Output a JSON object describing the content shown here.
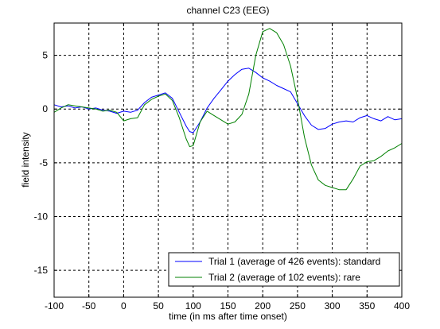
{
  "chart_data": {
    "type": "line",
    "title": "channel C23 (EEG)",
    "xlabel": "time (in ms after time onset)",
    "ylabel": "field intensity",
    "xlim": [
      -100,
      400
    ],
    "ylim": [
      -17.5,
      8
    ],
    "xticks": [
      "-100",
      "-50",
      "0",
      "50",
      "100",
      "150",
      "200",
      "250",
      "300",
      "350",
      "400"
    ],
    "yticks": [
      "5",
      "0",
      "-5",
      "-10",
      "-15"
    ],
    "grid": true,
    "legend_position": "bottom-right",
    "colors": {
      "standard": "#0000ff",
      "rare": "#008000"
    },
    "series": [
      {
        "name": "Trial 1 (average of 426 events): standard",
        "color": "#0000ff",
        "x": [
          -100,
          -90,
          -80,
          -70,
          -60,
          -50,
          -40,
          -30,
          -20,
          -10,
          0,
          10,
          20,
          30,
          40,
          50,
          60,
          70,
          80,
          90,
          95,
          100,
          110,
          120,
          130,
          140,
          150,
          160,
          170,
          180,
          190,
          200,
          210,
          220,
          230,
          240,
          250,
          260,
          270,
          280,
          290,
          300,
          310,
          320,
          330,
          340,
          350,
          360,
          370,
          380,
          390,
          400
        ],
        "y": [
          0.4,
          0.2,
          0.3,
          0.1,
          0.2,
          0.0,
          0.1,
          -0.1,
          -0.2,
          -0.4,
          -0.2,
          -0.3,
          -0.1,
          0.6,
          1.1,
          1.3,
          1.5,
          1.0,
          -0.3,
          -1.6,
          -2.1,
          -2.2,
          -1.2,
          0.1,
          1.0,
          1.8,
          2.6,
          3.2,
          3.7,
          3.8,
          3.4,
          2.9,
          2.6,
          2.2,
          1.9,
          1.6,
          0.5,
          -0.6,
          -1.5,
          -1.9,
          -1.8,
          -1.4,
          -1.2,
          -1.1,
          -1.2,
          -0.8,
          -0.6,
          -0.9,
          -1.1,
          -0.7,
          -1.0,
          -0.9
        ]
      },
      {
        "name": "Trial 2 (average of 102 events): rare",
        "color": "#008000",
        "x": [
          -100,
          -90,
          -80,
          -70,
          -60,
          -50,
          -40,
          -30,
          -20,
          -10,
          0,
          10,
          20,
          30,
          40,
          50,
          60,
          70,
          80,
          90,
          95,
          100,
          110,
          120,
          130,
          140,
          150,
          160,
          170,
          180,
          190,
          200,
          210,
          220,
          230,
          240,
          250,
          260,
          270,
          280,
          290,
          300,
          310,
          320,
          330,
          340,
          350,
          360,
          370,
          380,
          390,
          400
        ],
        "y": [
          -0.3,
          0.1,
          0.4,
          0.3,
          0.2,
          0.1,
          0.0,
          -0.2,
          -0.1,
          -0.3,
          -1.1,
          -0.9,
          -0.8,
          0.4,
          0.9,
          1.2,
          1.4,
          0.8,
          -0.8,
          -2.8,
          -3.5,
          -3.4,
          -1.2,
          -0.2,
          -0.6,
          -1.0,
          -1.4,
          -1.2,
          -0.5,
          1.4,
          5.0,
          7.2,
          7.5,
          7.1,
          6.0,
          4.0,
          1.0,
          -2.6,
          -5.2,
          -6.6,
          -7.1,
          -7.3,
          -7.5,
          -7.5,
          -6.5,
          -5.3,
          -4.9,
          -4.8,
          -4.4,
          -3.9,
          -3.6,
          -3.2
        ]
      }
    ]
  }
}
